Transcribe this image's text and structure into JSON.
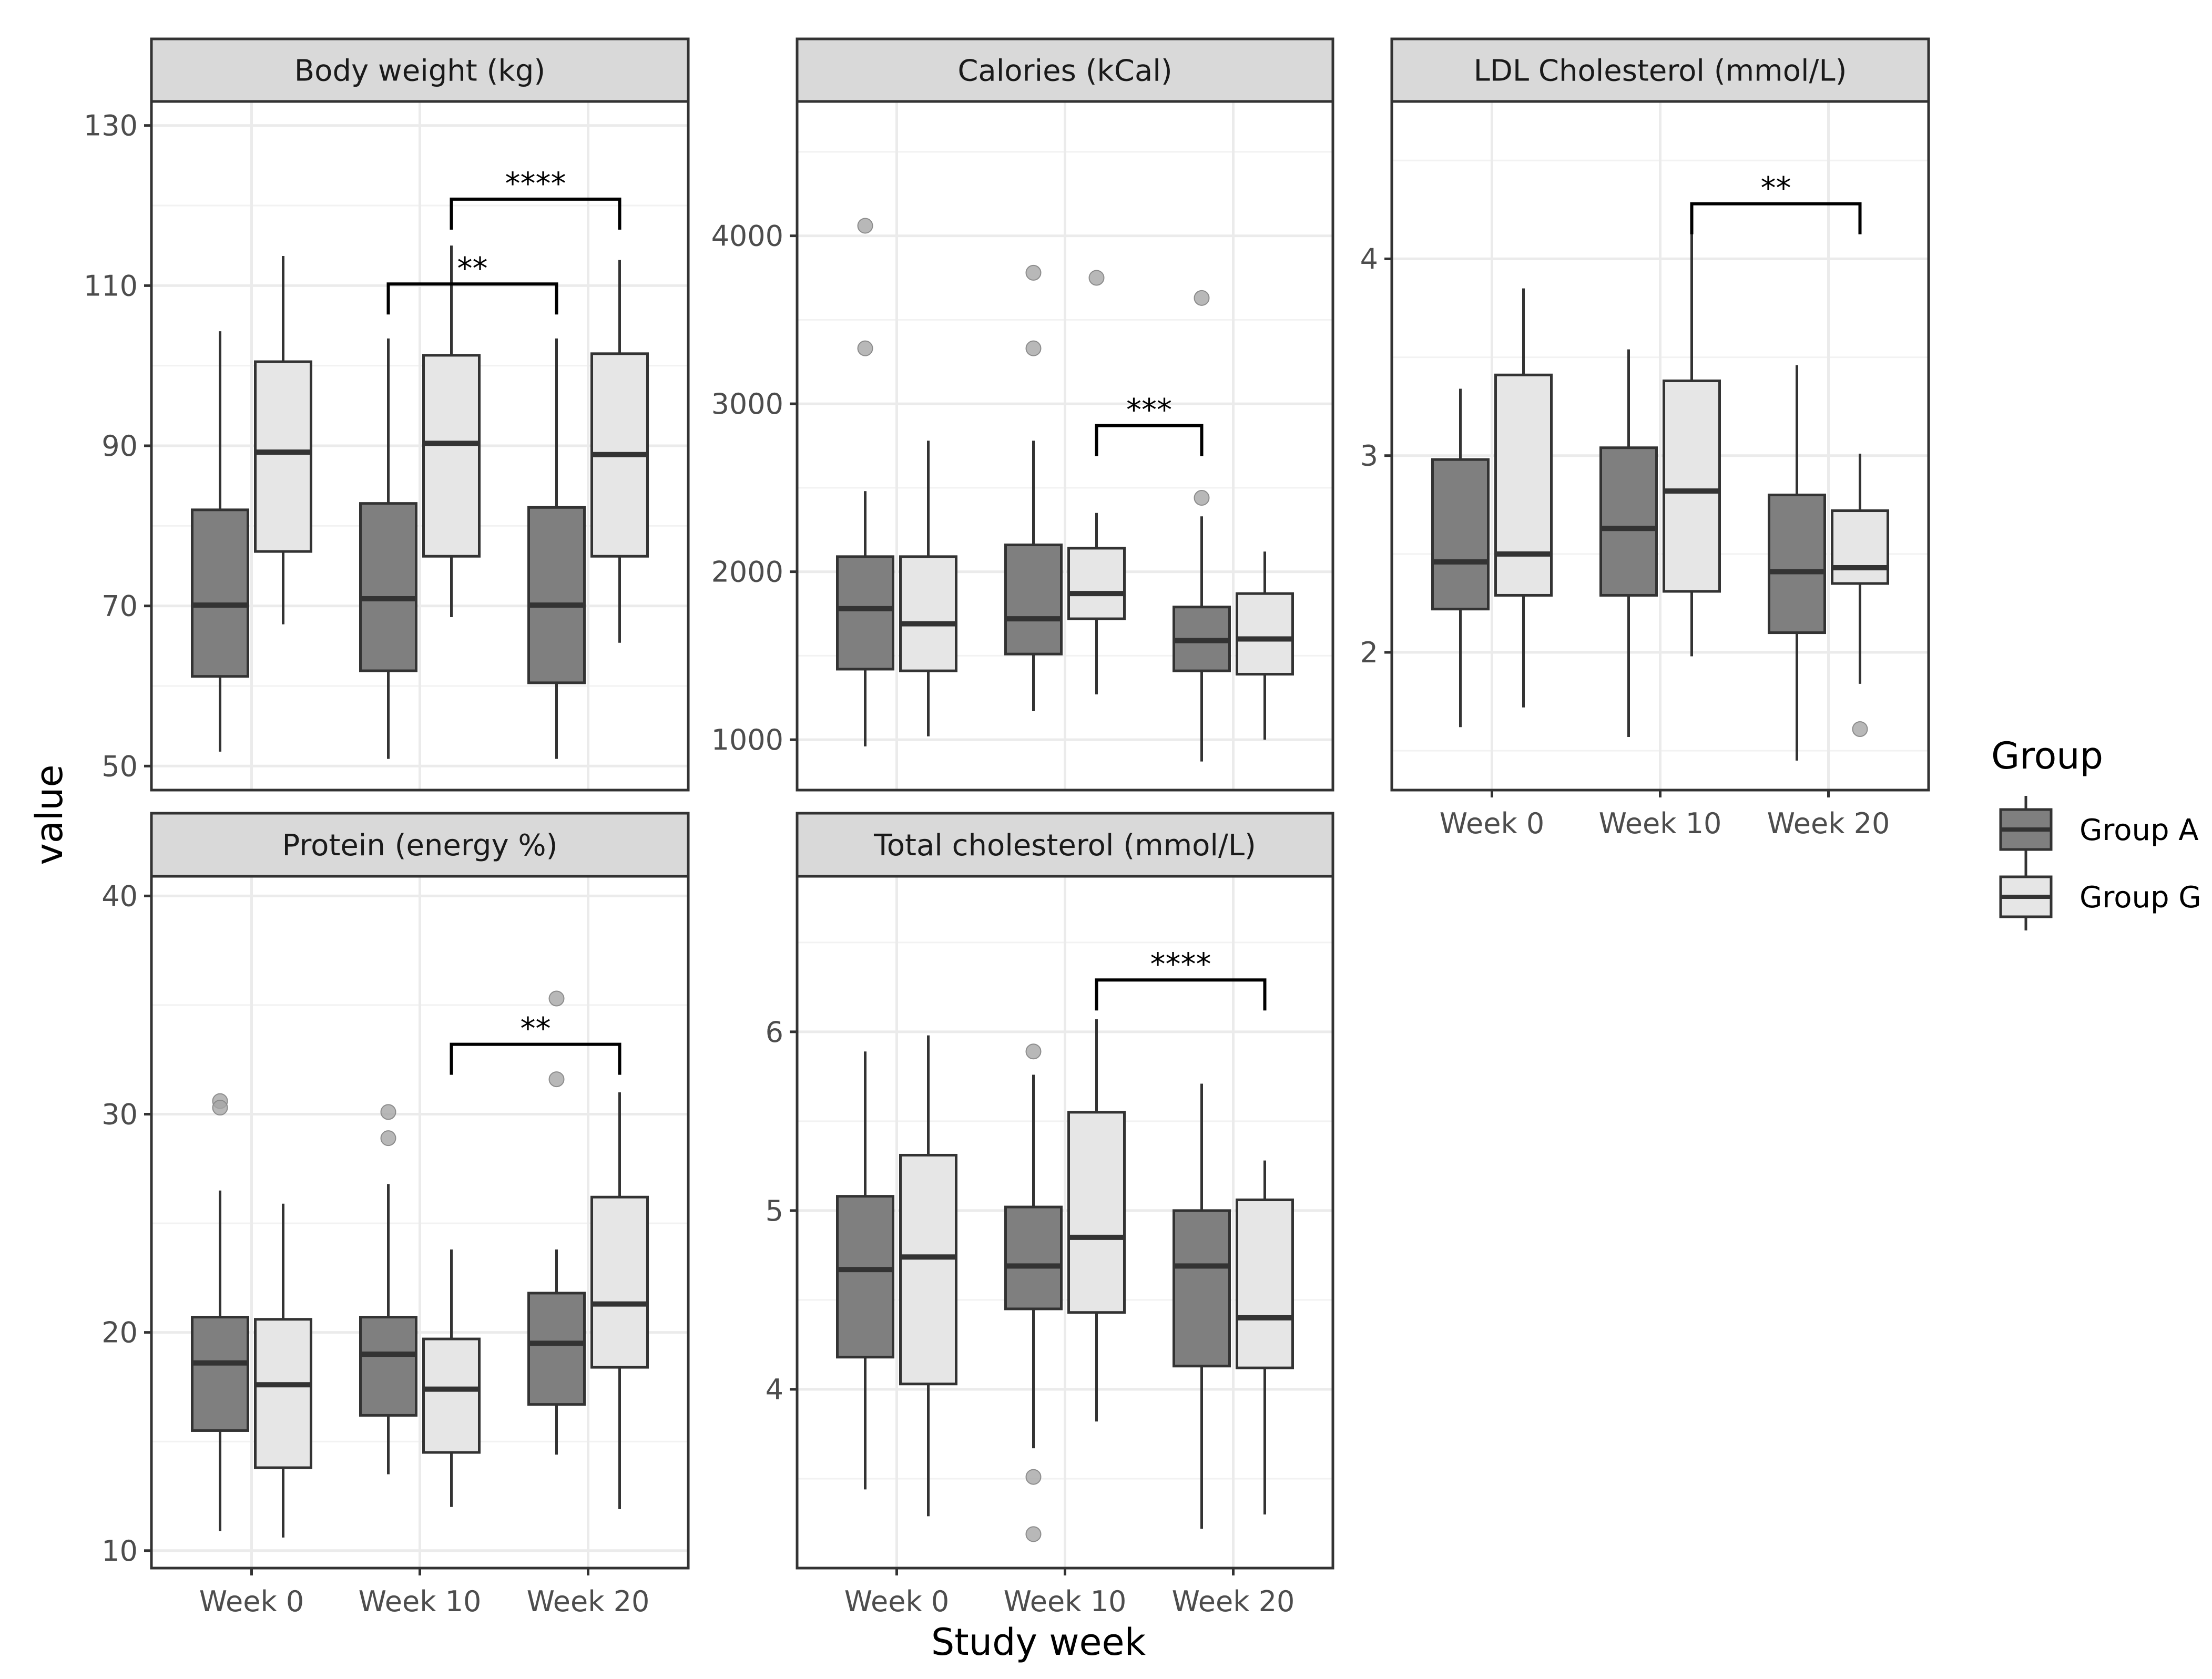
{
  "chart_data": {
    "type": "boxplot",
    "xlabel": "Study week",
    "ylabel": "value",
    "categories": [
      "Week 0",
      "Week 10",
      "Week 20"
    ],
    "legend": {
      "title": "Group",
      "position": "right",
      "entries": [
        {
          "name": "Group A",
          "color": "#7f7f7f"
        },
        {
          "name": "Group G",
          "color": "#e6e6e6"
        }
      ]
    },
    "grid": true,
    "panels": [
      {
        "title": "Body weight (kg)",
        "ylim": [
          47,
          133
        ],
        "yticks": [
          50,
          70,
          90,
          110,
          130
        ],
        "boxes": [
          {
            "category": "Week 0",
            "group": "Group A",
            "min": 51.8,
            "q1": 61.2,
            "median": 70.1,
            "q3": 82.0,
            "max": 104.3,
            "outliers": []
          },
          {
            "category": "Week 0",
            "group": "Group G",
            "min": 67.7,
            "q1": 76.8,
            "median": 89.2,
            "q3": 100.5,
            "max": 113.7,
            "outliers": []
          },
          {
            "category": "Week 10",
            "group": "Group A",
            "min": 50.9,
            "q1": 61.9,
            "median": 70.9,
            "q3": 82.8,
            "max": 103.4,
            "outliers": []
          },
          {
            "category": "Week 10",
            "group": "Group G",
            "min": 68.6,
            "q1": 76.2,
            "median": 90.3,
            "q3": 101.3,
            "max": 115.0,
            "outliers": []
          },
          {
            "category": "Week 20",
            "group": "Group A",
            "min": 50.9,
            "q1": 60.4,
            "median": 70.1,
            "q3": 82.3,
            "max": 103.4,
            "outliers": []
          },
          {
            "category": "Week 20",
            "group": "Group G",
            "min": 65.4,
            "q1": 76.2,
            "median": 88.9,
            "q3": 101.5,
            "max": 113.2,
            "outliers": []
          }
        ],
        "significance": [
          {
            "label": "****",
            "from": "Week 10",
            "from_group": "Group G",
            "to": "Week 20",
            "to_group": "Group G",
            "y": 120.8
          },
          {
            "label": "**",
            "from": "Week 10",
            "from_group": "Group A",
            "to": "Week 20",
            "to_group": "Group A",
            "y": 110.2
          }
        ]
      },
      {
        "title": "Calories (kCal)",
        "ylim": [
          700,
          4800
        ],
        "yticks": [
          1000,
          2000,
          3000,
          4000
        ],
        "boxes": [
          {
            "category": "Week 0",
            "group": "Group A",
            "min": 960,
            "q1": 1420,
            "median": 1780,
            "q3": 2090,
            "max": 2480,
            "outliers": [
              4060,
              3330
            ]
          },
          {
            "category": "Week 0",
            "group": "Group G",
            "min": 1020,
            "q1": 1410,
            "median": 1690,
            "q3": 2090,
            "max": 2780,
            "outliers": []
          },
          {
            "category": "Week 10",
            "group": "Group A",
            "min": 1170,
            "q1": 1510,
            "median": 1720,
            "q3": 2160,
            "max": 2780,
            "outliers": [
              3780,
              3330
            ]
          },
          {
            "category": "Week 10",
            "group": "Group G",
            "min": 1270,
            "q1": 1720,
            "median": 1870,
            "q3": 2140,
            "max": 2350,
            "outliers": [
              3750
            ]
          },
          {
            "category": "Week 20",
            "group": "Group A",
            "min": 870,
            "q1": 1410,
            "median": 1590,
            "q3": 1790,
            "max": 2330,
            "outliers": [
              3630,
              2440
            ]
          },
          {
            "category": "Week 20",
            "group": "Group G",
            "min": 1000,
            "q1": 1390,
            "median": 1600,
            "q3": 1870,
            "max": 2120,
            "outliers": []
          }
        ],
        "significance": [
          {
            "label": "***",
            "from": "Week 10",
            "from_group": "Group G",
            "to": "Week 20",
            "to_group": "Group A",
            "y": 2870
          }
        ]
      },
      {
        "title": "LDL Cholesterol (mmol/L)",
        "ylim": [
          1.3,
          4.8
        ],
        "yticks": [
          2,
          3,
          4
        ],
        "boxes": [
          {
            "category": "Week 0",
            "group": "Group A",
            "min": 1.62,
            "q1": 2.22,
            "median": 2.46,
            "q3": 2.98,
            "max": 3.34,
            "outliers": []
          },
          {
            "category": "Week 0",
            "group": "Group G",
            "min": 1.72,
            "q1": 2.29,
            "median": 2.5,
            "q3": 3.41,
            "max": 3.85,
            "outliers": []
          },
          {
            "category": "Week 10",
            "group": "Group A",
            "min": 1.57,
            "q1": 2.29,
            "median": 2.63,
            "q3": 3.04,
            "max": 3.54,
            "outliers": []
          },
          {
            "category": "Week 10",
            "group": "Group G",
            "min": 1.98,
            "q1": 2.31,
            "median": 2.82,
            "q3": 3.38,
            "max": 4.19,
            "outliers": []
          },
          {
            "category": "Week 20",
            "group": "Group A",
            "min": 1.45,
            "q1": 2.1,
            "median": 2.41,
            "q3": 2.8,
            "max": 3.46,
            "outliers": []
          },
          {
            "category": "Week 20",
            "group": "Group G",
            "min": 1.84,
            "q1": 2.35,
            "median": 2.43,
            "q3": 2.72,
            "max": 3.01,
            "outliers": [
              1.61
            ]
          }
        ],
        "significance": [
          {
            "label": "**",
            "from": "Week 10",
            "from_group": "Group G",
            "to": "Week 20",
            "to_group": "Group G",
            "y": 4.28
          }
        ]
      },
      {
        "title": "Protein (energy %)",
        "ylim": [
          9.2,
          40.9
        ],
        "yticks": [
          10,
          20,
          30,
          40
        ],
        "boxes": [
          {
            "category": "Week 0",
            "group": "Group A",
            "min": 10.9,
            "q1": 15.5,
            "median": 18.6,
            "q3": 20.7,
            "max": 26.5,
            "outliers": [
              30.6,
              30.3
            ]
          },
          {
            "category": "Week 0",
            "group": "Group G",
            "min": 10.6,
            "q1": 13.8,
            "median": 17.6,
            "q3": 20.6,
            "max": 25.9,
            "outliers": []
          },
          {
            "category": "Week 10",
            "group": "Group A",
            "min": 13.5,
            "q1": 16.2,
            "median": 19.0,
            "q3": 20.7,
            "max": 26.8,
            "outliers": [
              30.1,
              28.9
            ]
          },
          {
            "category": "Week 10",
            "group": "Group G",
            "min": 12.0,
            "q1": 14.5,
            "median": 17.4,
            "q3": 19.7,
            "max": 23.8,
            "outliers": []
          },
          {
            "category": "Week 20",
            "group": "Group A",
            "min": 14.4,
            "q1": 16.7,
            "median": 19.5,
            "q3": 21.8,
            "max": 23.8,
            "outliers": [
              35.3,
              31.6
            ]
          },
          {
            "category": "Week 20",
            "group": "Group G",
            "min": 11.9,
            "q1": 18.4,
            "median": 21.3,
            "q3": 26.2,
            "max": 31.0,
            "outliers": []
          }
        ],
        "significance": [
          {
            "label": "**",
            "from": "Week 10",
            "from_group": "Group G",
            "to": "Week 20",
            "to_group": "Group G",
            "y": 33.2
          }
        ]
      },
      {
        "title": "Total cholesterol (mmol/L)",
        "ylim": [
          3.0,
          6.87
        ],
        "yticks": [
          4,
          5,
          6
        ],
        "boxes": [
          {
            "category": "Week 0",
            "group": "Group A",
            "min": 3.44,
            "q1": 4.18,
            "median": 4.67,
            "q3": 5.08,
            "max": 5.89,
            "outliers": []
          },
          {
            "category": "Week 0",
            "group": "Group G",
            "min": 3.29,
            "q1": 4.03,
            "median": 4.74,
            "q3": 5.31,
            "max": 5.98,
            "outliers": []
          },
          {
            "category": "Week 10",
            "group": "Group A",
            "min": 3.67,
            "q1": 4.45,
            "median": 4.69,
            "q3": 5.02,
            "max": 5.76,
            "outliers": [
              5.89,
              3.51,
              3.19
            ]
          },
          {
            "category": "Week 10",
            "group": "Group G",
            "min": 3.82,
            "q1": 4.43,
            "median": 4.85,
            "q3": 5.55,
            "max": 6.07,
            "outliers": []
          },
          {
            "category": "Week 20",
            "group": "Group A",
            "min": 3.22,
            "q1": 4.13,
            "median": 4.69,
            "q3": 5.0,
            "max": 5.71,
            "outliers": []
          },
          {
            "category": "Week 20",
            "group": "Group G",
            "min": 3.3,
            "q1": 4.12,
            "median": 4.4,
            "q3": 5.06,
            "max": 5.28,
            "outliers": []
          }
        ],
        "significance": [
          {
            "label": "****",
            "from": "Week 10",
            "from_group": "Group G",
            "to": "Week 20",
            "to_group": "Group G",
            "y": 6.29
          }
        ]
      }
    ]
  }
}
